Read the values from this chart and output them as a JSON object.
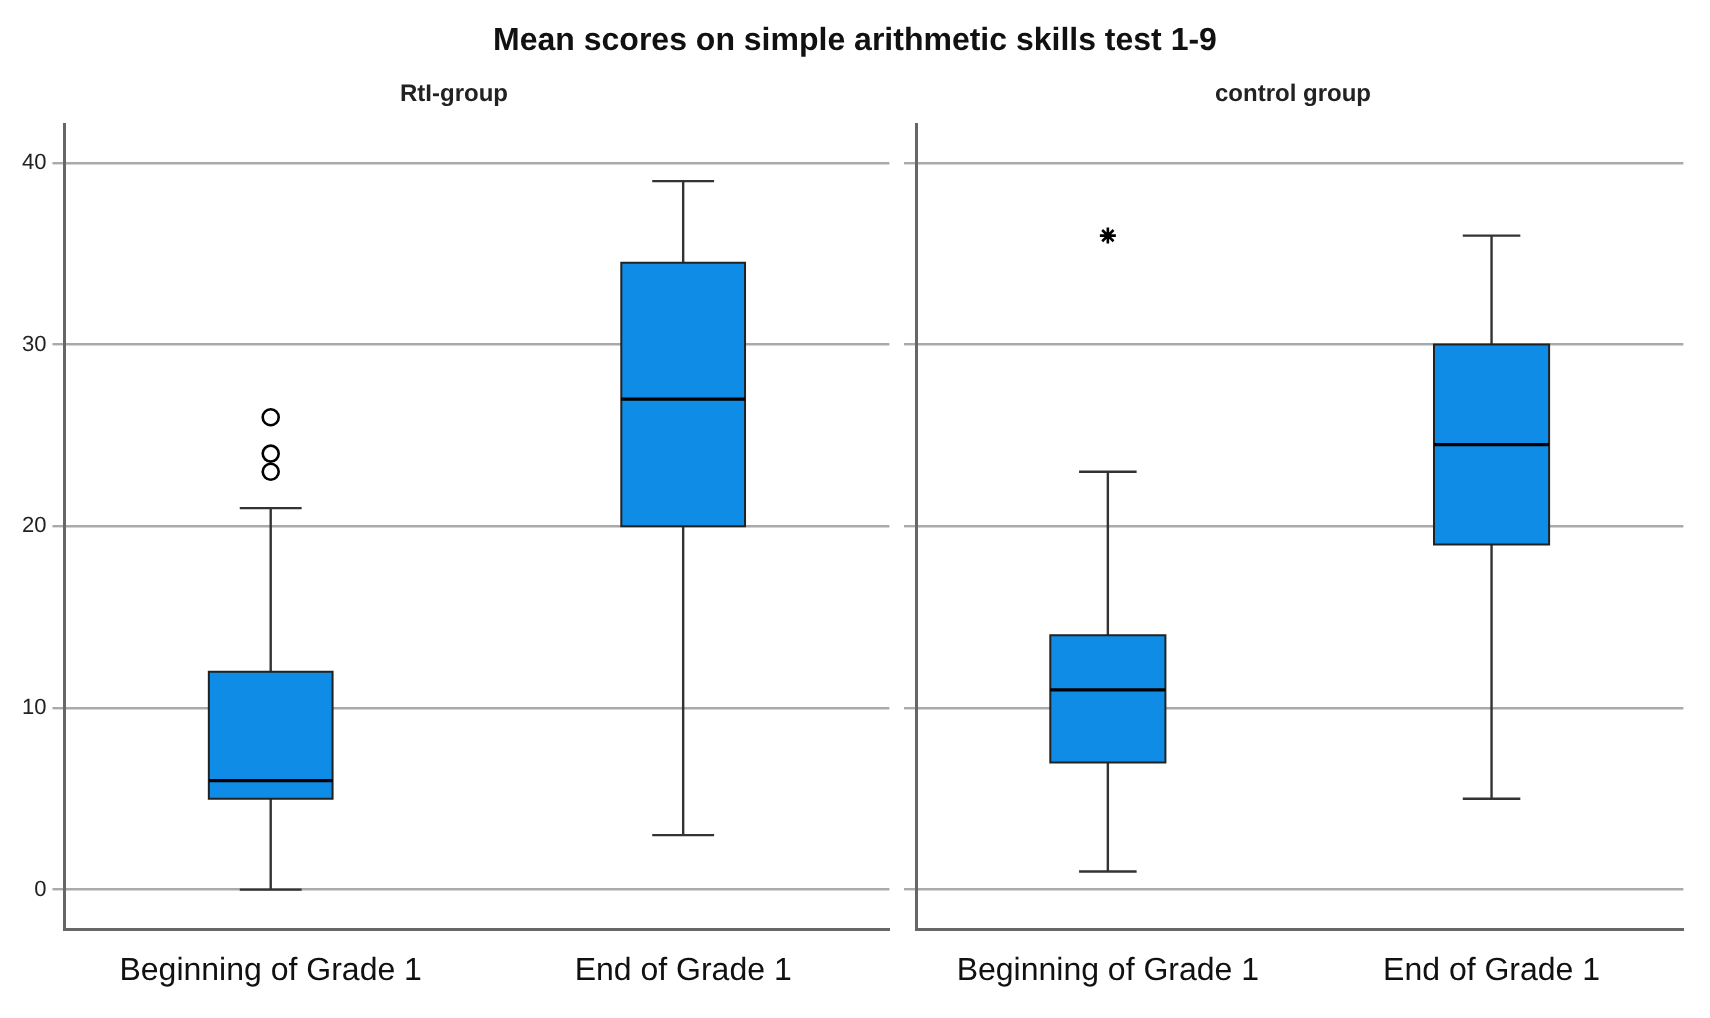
{
  "chart_data": [
    {
      "type": "box",
      "title": "Mean scores on simple arithmetic skills test 1-9",
      "subtitle": "RtI-group",
      "categories": [
        "Beginning of Grade 1",
        "End of Grade 1"
      ],
      "series": [
        {
          "color": "#0f8ce6",
          "boxes": [
            {
              "low": 0,
              "q1": 5,
              "median": 6,
              "q3": 12,
              "high": 21,
              "outliers": [
                26,
                24,
                23
              ]
            },
            {
              "low": 3,
              "q1": 20,
              "median": 27,
              "q3": 34.5,
              "high": 39
            }
          ]
        }
      ],
      "ylim": [
        -2.2,
        42.1
      ],
      "yticks": [
        0,
        10,
        20,
        30,
        40
      ],
      "grid": "y",
      "marker": "circle"
    },
    {
      "type": "box",
      "subtitle": "control group",
      "categories": [
        "Beginning of Grade 1",
        "End of Grade 1"
      ],
      "series": [
        {
          "color": "#0f8ce6",
          "boxes": [
            {
              "low": 1,
              "q1": 7,
              "median": 11,
              "q3": 14,
              "high": 23,
              "outliers": [
                36
              ]
            },
            {
              "low": 5,
              "q1": 19,
              "median": 24.5,
              "q3": 30,
              "high": 36
            }
          ]
        }
      ],
      "ylim": [
        -2.2,
        42.1
      ],
      "yticks": [
        0,
        10,
        20,
        30,
        40
      ],
      "grid": "y",
      "marker": "star",
      "tick_labels": "x"
    }
  ]
}
